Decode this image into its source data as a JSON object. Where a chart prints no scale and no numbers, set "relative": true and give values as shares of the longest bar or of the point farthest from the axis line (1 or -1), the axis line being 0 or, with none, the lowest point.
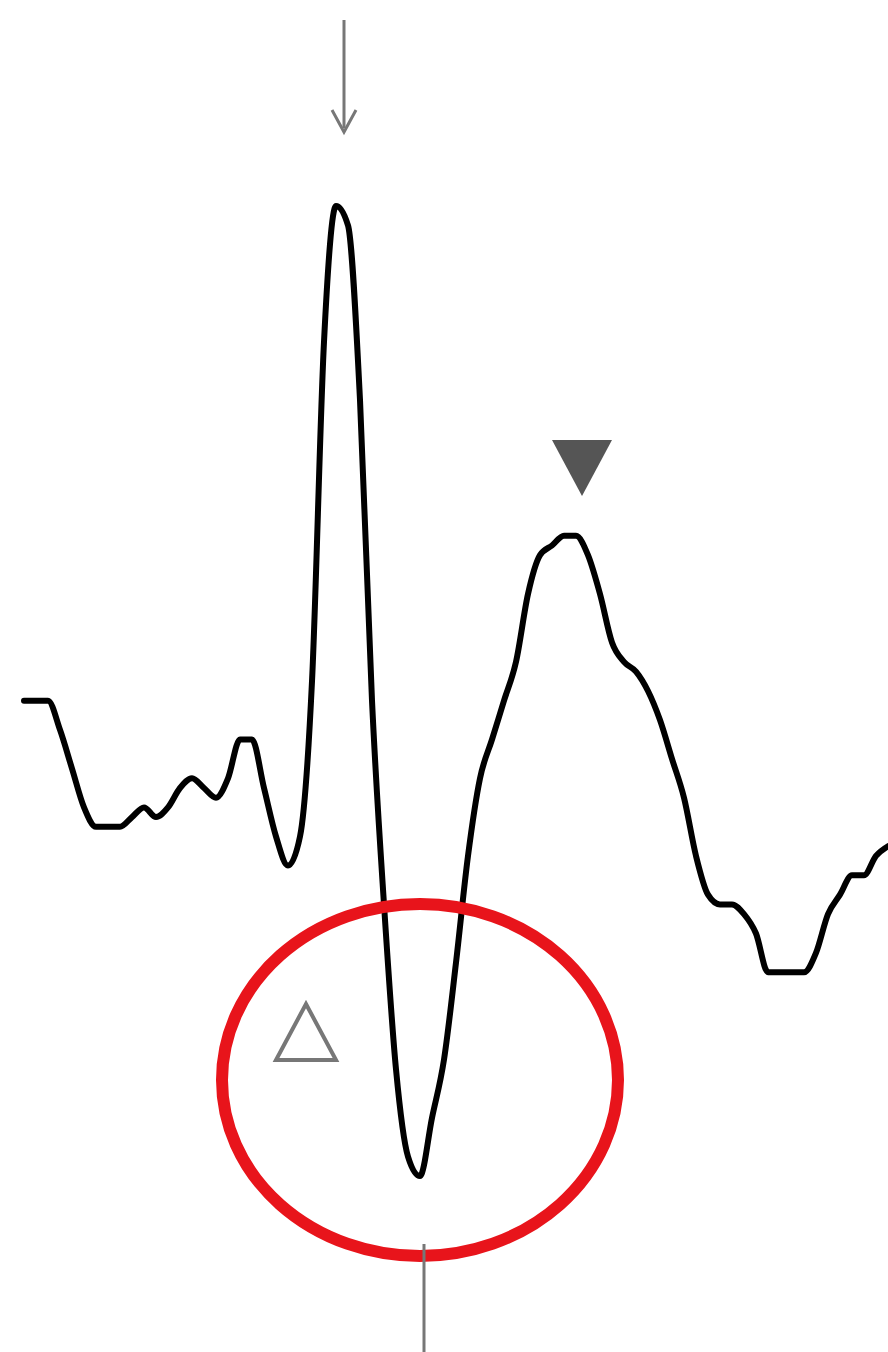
{
  "chart_data": {
    "type": "line",
    "relative": true,
    "categories": [
      null,
      null,
      null,
      null,
      null,
      null,
      null,
      null,
      null,
      null,
      null,
      null,
      null,
      null,
      null,
      null,
      null,
      null,
      null,
      null,
      null,
      null,
      null,
      null,
      null,
      null,
      null,
      null,
      null,
      null,
      null,
      null,
      null,
      null,
      null,
      null,
      null,
      null,
      null,
      null,
      null,
      null,
      null,
      null,
      null,
      null,
      null,
      null,
      null,
      null,
      null,
      null,
      null,
      null,
      null,
      null,
      null,
      null,
      null,
      null,
      null,
      null,
      null,
      null,
      null,
      null,
      null,
      null,
      null,
      null,
      null,
      null,
      null
    ],
    "series": [
      {
        "color": "#000000",
        "values": [
          0.49,
          0.49,
          0.49,
          0.46,
          0.42,
          0.38,
          0.36,
          0.36,
          0.36,
          0.37,
          0.38,
          0.37,
          0.38,
          0.4,
          0.41,
          0.4,
          0.39,
          0.41,
          0.45,
          0.45,
          0.4,
          0.35,
          0.32,
          0.35,
          0.51,
          0.86,
          1.0,
          0.98,
          0.8,
          0.49,
          0.28,
          0.11,
          0.02,
          0,
          0.06,
          0.12,
          0.22,
          0.33,
          0.41,
          0.45,
          0.49,
          0.53,
          0.6,
          0.64,
          0.65,
          0.66,
          0.66,
          0.64,
          0.6,
          0.55,
          0.53,
          0.52,
          0.5,
          0.47,
          0.43,
          0.39,
          0.33,
          0.29,
          0.28,
          0.28,
          0.27,
          0.25,
          0.21,
          0.21,
          0.21,
          0.21,
          0.23,
          0.27,
          0.29,
          0.31,
          0.31,
          0.33,
          0.34
        ]
      }
    ]
  }
}
